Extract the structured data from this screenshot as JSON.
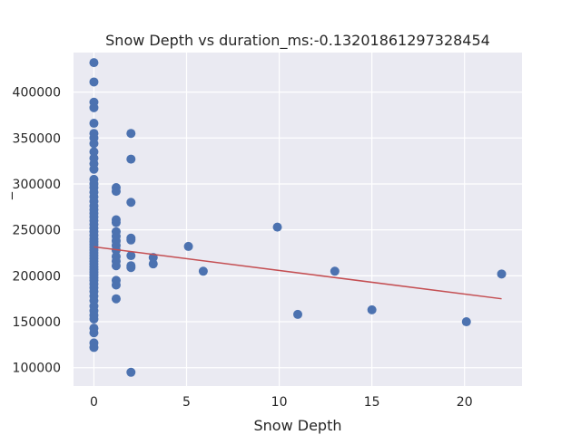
{
  "chart_data": {
    "type": "scatter",
    "title": "Snow Depth vs duration_ms:-0.13201861297328454",
    "xlabel": "Snow Depth",
    "ylabel": "_",
    "xlim": [
      -1.1,
      23.1
    ],
    "ylim": [
      80000,
      443000
    ],
    "xticks": [
      0,
      5,
      10,
      15,
      20
    ],
    "yticks": [
      100000,
      150000,
      200000,
      250000,
      300000,
      350000,
      400000
    ],
    "xtick_labels": [
      "0",
      "5",
      "10",
      "15",
      "20"
    ],
    "ytick_labels": [
      "100000",
      "150000",
      "200000",
      "250000",
      "300000",
      "350000",
      "400000"
    ],
    "grid": true,
    "colors": {
      "background": "#eaeaf2",
      "grid": "#ffffff",
      "points": "#4c72b0",
      "trend": "#c44e52"
    },
    "series": [
      {
        "values": [
          [
            0,
            432000
          ],
          [
            0,
            411000
          ],
          [
            0,
            389000
          ],
          [
            0,
            383000
          ],
          [
            0,
            366000
          ],
          [
            0,
            355000
          ],
          [
            0,
            350000
          ],
          [
            0,
            344000
          ],
          [
            0,
            335000
          ],
          [
            0,
            328000
          ],
          [
            0,
            322000
          ],
          [
            0,
            316000
          ],
          [
            0,
            305000
          ],
          [
            0,
            300000
          ],
          [
            0,
            296000
          ],
          [
            0,
            291000
          ],
          [
            0,
            286000
          ],
          [
            0,
            281000
          ],
          [
            0,
            276000
          ],
          [
            0,
            272000
          ],
          [
            0,
            268000
          ],
          [
            0,
            264000
          ],
          [
            0,
            260000
          ],
          [
            0,
            256000
          ],
          [
            0,
            252000
          ],
          [
            0,
            248000
          ],
          [
            0,
            244000
          ],
          [
            0,
            240000
          ],
          [
            0,
            237000
          ],
          [
            0,
            234000
          ],
          [
            0,
            231000
          ],
          [
            0,
            228000
          ],
          [
            0,
            225000
          ],
          [
            0,
            222000
          ],
          [
            0,
            219000
          ],
          [
            0,
            216000
          ],
          [
            0,
            213000
          ],
          [
            0,
            210000
          ],
          [
            0,
            207000
          ],
          [
            0,
            204000
          ],
          [
            0,
            201000
          ],
          [
            0,
            198000
          ],
          [
            0,
            195000
          ],
          [
            0,
            191000
          ],
          [
            0,
            187000
          ],
          [
            0,
            183000
          ],
          [
            0,
            178000
          ],
          [
            0,
            173000
          ],
          [
            0,
            167000
          ],
          [
            0,
            162000
          ],
          [
            0,
            157000
          ],
          [
            0,
            153000
          ],
          [
            0,
            143000
          ],
          [
            0,
            138000
          ],
          [
            0,
            127000
          ],
          [
            0,
            122000
          ],
          [
            1.2,
            296000
          ],
          [
            1.2,
            292000
          ],
          [
            1.2,
            261000
          ],
          [
            1.2,
            258000
          ],
          [
            1.2,
            248000
          ],
          [
            1.2,
            243000
          ],
          [
            1.2,
            238000
          ],
          [
            1.2,
            233000
          ],
          [
            1.2,
            228000
          ],
          [
            1.2,
            221000
          ],
          [
            1.2,
            216000
          ],
          [
            1.2,
            211000
          ],
          [
            1.2,
            195000
          ],
          [
            1.2,
            190000
          ],
          [
            1.2,
            175000
          ],
          [
            2,
            355000
          ],
          [
            2,
            327000
          ],
          [
            2,
            280000
          ],
          [
            2,
            241000
          ],
          [
            2,
            239000
          ],
          [
            2,
            222000
          ],
          [
            2,
            211000
          ],
          [
            2,
            209000
          ],
          [
            2,
            95000
          ],
          [
            3.2,
            220000
          ],
          [
            3.2,
            213000
          ],
          [
            5.1,
            232000
          ],
          [
            5.9,
            205000
          ],
          [
            9.9,
            253000
          ],
          [
            11,
            158000
          ],
          [
            13,
            205000
          ],
          [
            15,
            163000
          ],
          [
            20.1,
            150000
          ],
          [
            22,
            202000
          ]
        ]
      }
    ],
    "trendline": {
      "x": [
        0,
        22
      ],
      "y": [
        231500,
        175000
      ]
    }
  }
}
